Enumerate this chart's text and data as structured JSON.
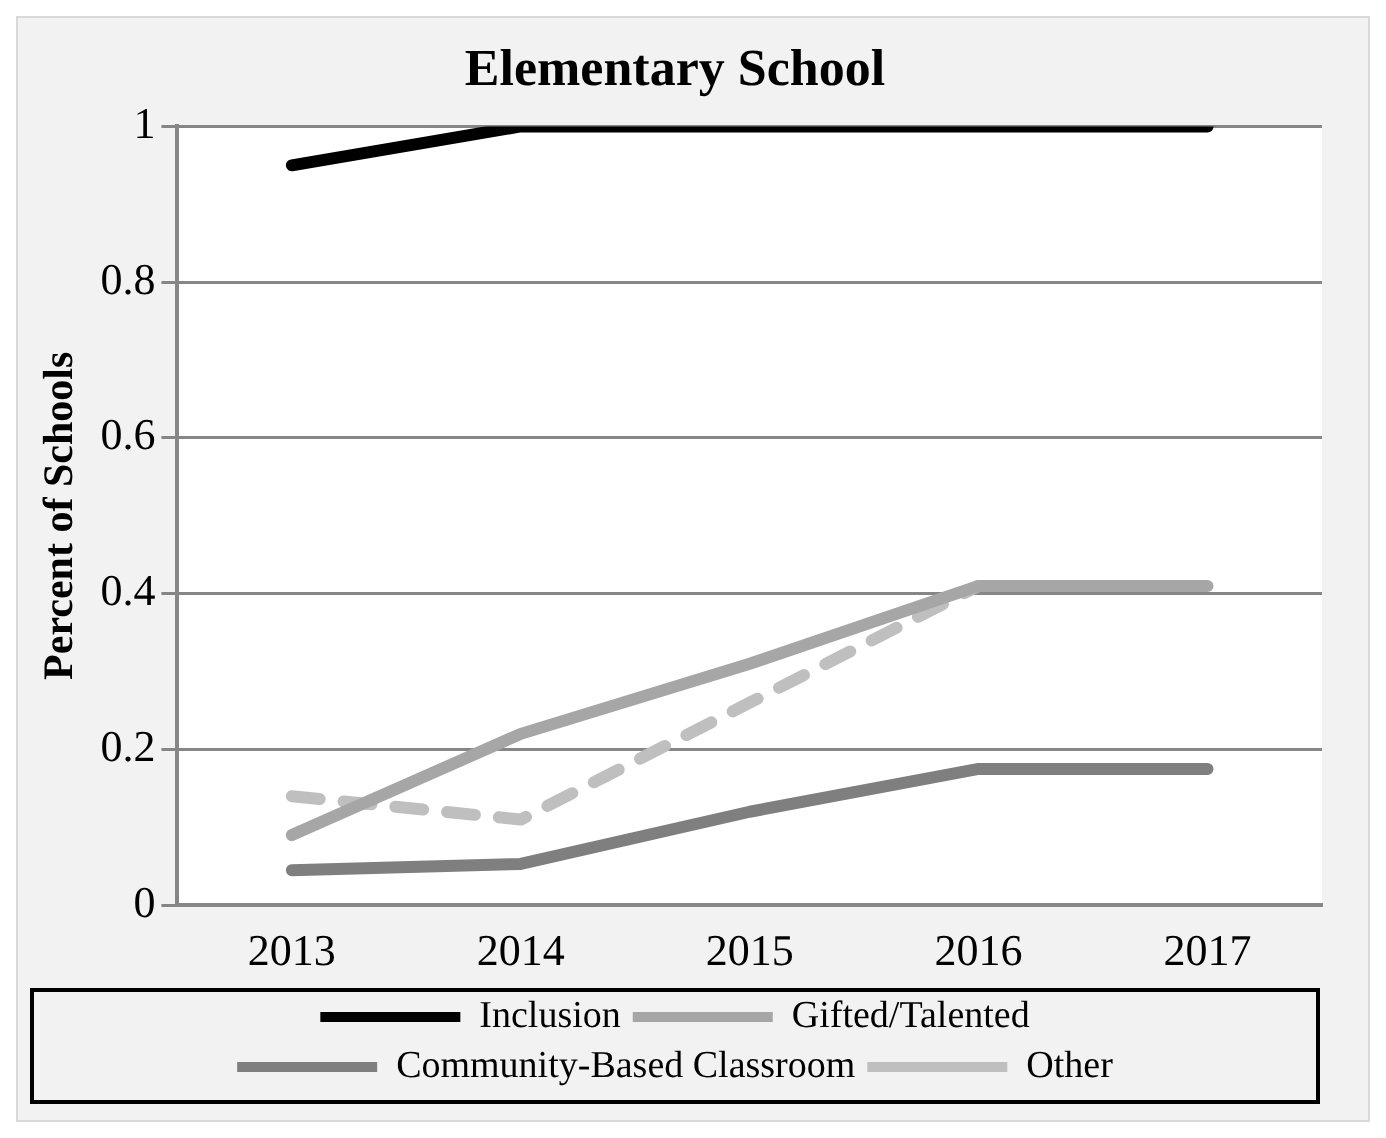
{
  "chart_data": {
    "type": "line",
    "title": "Elementary School",
    "ylabel": "Percent of Schools",
    "categories": [
      "2013",
      "2014",
      "2015",
      "2016",
      "2017"
    ],
    "series": [
      {
        "name": "Inclusion",
        "color": "#000000",
        "values": [
          0.95,
          1,
          1,
          1,
          1
        ]
      },
      {
        "name": "Gifted/Talented",
        "color": "#a6a6a6",
        "values": [
          0.09,
          0.22,
          0.31,
          0.41,
          0.41
        ]
      },
      {
        "name": "Community-Based Classroom",
        "color": "#7f7f7f",
        "values": [
          0.045,
          0.053,
          0.12,
          0.175,
          0.175
        ]
      },
      {
        "name": "Other",
        "color": "#bfbfbf",
        "values": [
          0.14,
          0.11,
          0.26,
          0.41,
          0.41
        ],
        "line_style": "dashed"
      }
    ],
    "ylim": [
      0,
      1
    ],
    "yticks": [
      0,
      0.2,
      0.4,
      0.6,
      0.8,
      1
    ],
    "grid": "y",
    "legend": "bottom",
    "marker": "none"
  }
}
